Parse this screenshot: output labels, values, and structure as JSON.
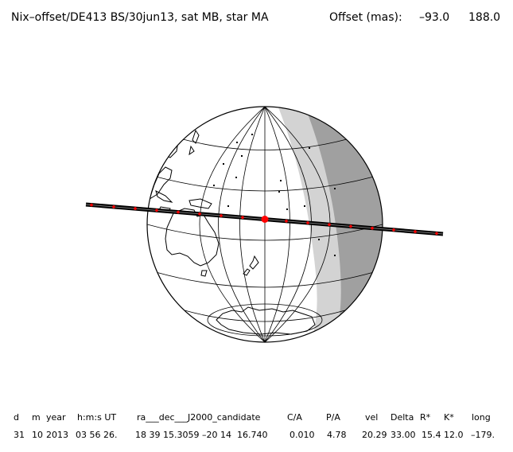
{
  "header": {
    "title": "Nix–offset/DE413 BS/30jun13, sat MB, star MA",
    "offset_label": "Offset (mas):",
    "offset_x": "–93.0",
    "offset_y": "188.0"
  },
  "map": {
    "projection": "orthographic",
    "globe_fill": "#ffffff",
    "twilight_color": "#d3d3d3",
    "night_color": "#a0a0a0",
    "track_color": "#000000",
    "marker_color": "#ff0000"
  },
  "table": {
    "headers": [
      "d",
      "m",
      "year",
      "h:m:s UT",
      "ra___dec___J2000_candidate",
      "C/A",
      "P/A",
      "vel",
      "Delta",
      "R*",
      "K*",
      "long"
    ],
    "values": [
      "31",
      "10",
      "2013",
      "03 56 26.",
      "18 39 15.3059 –20 14  16.740",
      "0.010",
      "4.78",
      "20.29",
      "33.00",
      "15.4",
      "12.0",
      "–179."
    ]
  }
}
